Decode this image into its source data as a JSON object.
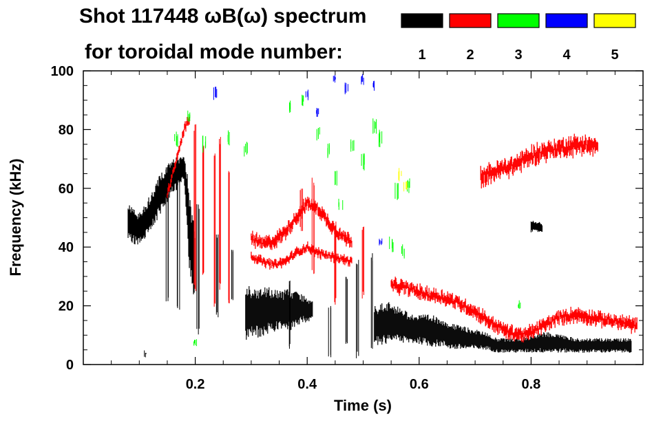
{
  "chart_data": {
    "type": "scatter",
    "title_line1": "Shot 117448 ωB(ω) spectrum",
    "title_line2": "for toroidal mode number:",
    "xlabel": "Time (s)",
    "ylabel": "Frequency (kHz)",
    "xlim": [
      0.0,
      1.0
    ],
    "ylim": [
      0,
      100
    ],
    "xticks": [
      0.2,
      0.4,
      0.6,
      0.8
    ],
    "xtick_labels": [
      "0.2",
      "0.4",
      "0.6",
      "0.8"
    ],
    "yticks": [
      0,
      20,
      40,
      60,
      80,
      100
    ],
    "ytick_labels": [
      "0",
      "20",
      "40",
      "60",
      "80",
      "100"
    ],
    "legend": [
      {
        "label": "1",
        "color": "#000000"
      },
      {
        "label": "2",
        "color": "#ff0000"
      },
      {
        "label": "3",
        "color": "#00ff00"
      },
      {
        "label": "4",
        "color": "#0000ff"
      },
      {
        "label": "5",
        "color": "#ffff00"
      }
    ],
    "series": [
      {
        "name": "n=1",
        "color": "#000000",
        "bands": [
          {
            "t": [
              0.08,
              0.1,
              0.12,
              0.14,
              0.16,
              0.18,
              0.19,
              0.2
            ],
            "lo": [
              42,
              40,
              45,
              52,
              58,
              62,
              30,
              20
            ],
            "hi": [
              55,
              52,
              58,
              66,
              70,
              72,
              60,
              45
            ]
          },
          {
            "t": [
              0.29,
              0.31,
              0.33,
              0.35,
              0.37,
              0.39,
              0.41
            ],
            "lo": [
              8,
              9,
              10,
              12,
              11,
              14,
              15
            ],
            "hi": [
              28,
              26,
              27,
              25,
              26,
              24,
              22
            ]
          },
          {
            "t": [
              0.52,
              0.54,
              0.56,
              0.58,
              0.6,
              0.62,
              0.64,
              0.66,
              0.68,
              0.7,
              0.72,
              0.74,
              0.76,
              0.78,
              0.8,
              0.82,
              0.84,
              0.86,
              0.88,
              0.9,
              0.92,
              0.94,
              0.96,
              0.98
            ],
            "lo": [
              6,
              7,
              8,
              7,
              7,
              6,
              6,
              5,
              5,
              5,
              5,
              4,
              4,
              4,
              4,
              4,
              4,
              4,
              4,
              4,
              4,
              4,
              4,
              4
            ],
            "hi": [
              20,
              22,
              20,
              18,
              17,
              17,
              16,
              14,
              13,
              12,
              11,
              9,
              9,
              9,
              10,
              11,
              11,
              10,
              9,
              9,
              9,
              9,
              9,
              9
            ]
          },
          {
            "t": [
              0.8,
              0.81,
              0.82
            ],
            "lo": [
              45,
              45,
              45
            ],
            "hi": [
              49,
              49,
              48
            ]
          }
        ],
        "streaks": [
          {
            "t": 0.15,
            "lo": 20,
            "hi": 68
          },
          {
            "t": 0.17,
            "lo": 18,
            "hi": 70
          },
          {
            "t": 0.205,
            "lo": 10,
            "hi": 55
          },
          {
            "t": 0.24,
            "lo": 15,
            "hi": 45
          },
          {
            "t": 0.265,
            "lo": 20,
            "hi": 40
          },
          {
            "t": 0.37,
            "lo": 5,
            "hi": 30
          },
          {
            "t": 0.44,
            "lo": 2,
            "hi": 22
          },
          {
            "t": 0.47,
            "lo": 5,
            "hi": 30
          },
          {
            "t": 0.49,
            "lo": 2,
            "hi": 36
          },
          {
            "t": 0.515,
            "lo": 5,
            "hi": 38
          },
          {
            "t": 0.11,
            "lo": 1,
            "hi": 6
          }
        ]
      },
      {
        "name": "n=2",
        "color": "#ff0000",
        "tracks": [
          {
            "t": [
              0.3,
              0.32,
              0.34,
              0.36,
              0.38,
              0.4,
              0.42,
              0.44,
              0.46,
              0.48
            ],
            "y": [
              43,
              41,
              42,
              45,
              50,
              55,
              53,
              48,
              44,
              42
            ],
            "width": 3
          },
          {
            "t": [
              0.3,
              0.32,
              0.34,
              0.36,
              0.38,
              0.4,
              0.42,
              0.44,
              0.46,
              0.48
            ],
            "y": [
              37,
              35,
              34,
              35,
              38,
              40,
              38,
              37,
              36,
              35
            ],
            "width": 2
          },
          {
            "t": [
              0.55,
              0.58,
              0.61,
              0.64,
              0.67,
              0.7,
              0.73,
              0.76,
              0.79,
              0.82,
              0.85,
              0.88,
              0.91,
              0.94,
              0.97,
              0.99
            ],
            "y": [
              27,
              26,
              24,
              23,
              21,
              18,
              14,
              11,
              10,
              13,
              16,
              17,
              16,
              15,
              14,
              13
            ],
            "width": 3
          },
          {
            "t": [
              0.71,
              0.74,
              0.77,
              0.8,
              0.83,
              0.86,
              0.89,
              0.92
            ],
            "y": [
              64,
              66,
              68,
              71,
              73,
              74,
              75,
              74
            ],
            "width": 4
          },
          {
            "t": [
              0.15,
              0.16,
              0.17,
              0.18,
              0.19
            ],
            "y": [
              58,
              65,
              72,
              80,
              84
            ],
            "width": 2
          }
        ],
        "streaks": [
          {
            "t": 0.2,
            "lo": 25,
            "hi": 82
          },
          {
            "t": 0.215,
            "lo": 30,
            "hi": 75
          },
          {
            "t": 0.235,
            "lo": 18,
            "hi": 72
          },
          {
            "t": 0.245,
            "lo": 25,
            "hi": 78
          },
          {
            "t": 0.26,
            "lo": 20,
            "hi": 68
          },
          {
            "t": 0.39,
            "lo": 45,
            "hi": 60
          },
          {
            "t": 0.41,
            "lo": 30,
            "hi": 64
          },
          {
            "t": 0.45,
            "lo": 20,
            "hi": 50
          },
          {
            "t": 0.5,
            "lo": 22,
            "hi": 48
          }
        ]
      },
      {
        "name": "n=3",
        "color": "#00ff00",
        "fragments": [
          {
            "t": 0.165,
            "lo": 74,
            "hi": 80
          },
          {
            "t": 0.19,
            "lo": 82,
            "hi": 87
          },
          {
            "t": 0.215,
            "lo": 72,
            "hi": 78
          },
          {
            "t": 0.26,
            "lo": 74,
            "hi": 80
          },
          {
            "t": 0.29,
            "lo": 70,
            "hi": 76
          },
          {
            "t": 0.37,
            "lo": 85,
            "hi": 90
          },
          {
            "t": 0.39,
            "lo": 88,
            "hi": 92
          },
          {
            "t": 0.42,
            "lo": 76,
            "hi": 82
          },
          {
            "t": 0.44,
            "lo": 70,
            "hi": 76
          },
          {
            "t": 0.45,
            "lo": 60,
            "hi": 66
          },
          {
            "t": 0.46,
            "lo": 52,
            "hi": 57
          },
          {
            "t": 0.48,
            "lo": 72,
            "hi": 77
          },
          {
            "t": 0.5,
            "lo": 66,
            "hi": 72
          },
          {
            "t": 0.52,
            "lo": 78,
            "hi": 84
          },
          {
            "t": 0.53,
            "lo": 74,
            "hi": 80
          },
          {
            "t": 0.55,
            "lo": 38,
            "hi": 44
          },
          {
            "t": 0.56,
            "lo": 56,
            "hi": 62
          },
          {
            "t": 0.57,
            "lo": 36,
            "hi": 41
          },
          {
            "t": 0.58,
            "lo": 58,
            "hi": 64
          },
          {
            "t": 0.78,
            "lo": 18,
            "hi": 22
          },
          {
            "t": 0.2,
            "lo": 6,
            "hi": 9
          }
        ]
      },
      {
        "name": "n=4",
        "color": "#0000ff",
        "fragments": [
          {
            "t": 0.235,
            "lo": 90,
            "hi": 96
          },
          {
            "t": 0.4,
            "lo": 90,
            "hi": 94
          },
          {
            "t": 0.42,
            "lo": 84,
            "hi": 88
          },
          {
            "t": 0.45,
            "lo": 96,
            "hi": 99
          },
          {
            "t": 0.47,
            "lo": 92,
            "hi": 96
          },
          {
            "t": 0.5,
            "lo": 95,
            "hi": 99
          },
          {
            "t": 0.52,
            "lo": 93,
            "hi": 97
          },
          {
            "t": 0.53,
            "lo": 40,
            "hi": 43
          }
        ]
      },
      {
        "name": "n=5",
        "color": "#ffff00",
        "fragments": [
          {
            "t": 0.565,
            "lo": 62,
            "hi": 68
          },
          {
            "t": 0.575,
            "lo": 58,
            "hi": 63
          }
        ]
      }
    ]
  }
}
